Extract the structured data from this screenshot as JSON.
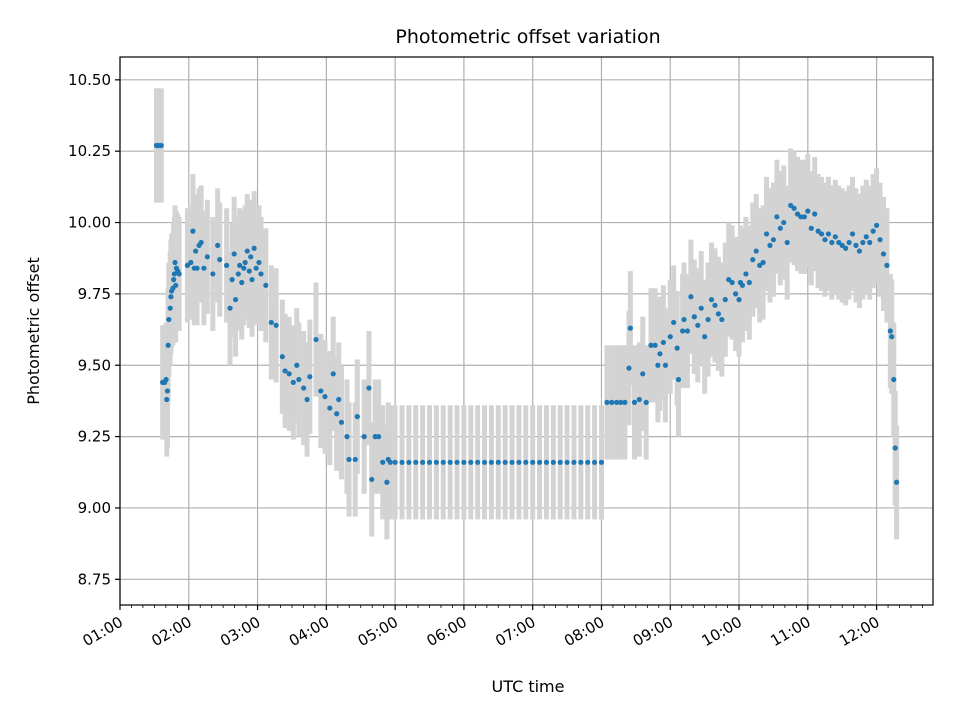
{
  "chart_data": {
    "type": "scatter",
    "title": "Photometric offset variation",
    "xlabel": "UTC time",
    "ylabel": "Photometric offset",
    "x_unit": "hours UTC",
    "xlim": [
      1.0,
      12.82
    ],
    "ylim": [
      8.66,
      10.58
    ],
    "x_ticks": [
      {
        "value": 1,
        "label": "01:00"
      },
      {
        "value": 2,
        "label": "02:00"
      },
      {
        "value": 3,
        "label": "03:00"
      },
      {
        "value": 4,
        "label": "04:00"
      },
      {
        "value": 5,
        "label": "05:00"
      },
      {
        "value": 6,
        "label": "06:00"
      },
      {
        "value": 7,
        "label": "07:00"
      },
      {
        "value": 8,
        "label": "08:00"
      },
      {
        "value": 9,
        "label": "09:00"
      },
      {
        "value": 10,
        "label": "10:00"
      },
      {
        "value": 11,
        "label": "11:00"
      },
      {
        "value": 12,
        "label": "12:00"
      }
    ],
    "y_ticks": [
      {
        "value": 8.75,
        "label": "8.75"
      },
      {
        "value": 9.0,
        "label": "9.00"
      },
      {
        "value": 9.25,
        "label": "9.25"
      },
      {
        "value": 9.5,
        "label": "9.50"
      },
      {
        "value": 9.75,
        "label": "9.75"
      },
      {
        "value": 10.0,
        "label": "10.00"
      },
      {
        "value": 10.25,
        "label": "10.25"
      },
      {
        "value": 10.5,
        "label": "10.50"
      }
    ],
    "grid": true,
    "x_tick_rotation": "30 degrees",
    "colors": {
      "points": "#1f77b4",
      "error_bars": "#d3d3d3",
      "grid": "#b0b0b0"
    },
    "error_half_width": 0.2,
    "points": [
      {
        "x": 1.53,
        "y": 10.27
      },
      {
        "x": 1.56,
        "y": 10.27
      },
      {
        "x": 1.6,
        "y": 10.27
      },
      {
        "x": 1.62,
        "y": 9.44
      },
      {
        "x": 1.65,
        "y": 9.44
      },
      {
        "x": 1.67,
        "y": 9.45
      },
      {
        "x": 1.68,
        "y": 9.38
      },
      {
        "x": 1.69,
        "y": 9.41
      },
      {
        "x": 1.7,
        "y": 9.57
      },
      {
        "x": 1.71,
        "y": 9.66
      },
      {
        "x": 1.73,
        "y": 9.7
      },
      {
        "x": 1.74,
        "y": 9.74
      },
      {
        "x": 1.75,
        "y": 9.76
      },
      {
        "x": 1.77,
        "y": 9.77
      },
      {
        "x": 1.78,
        "y": 9.8
      },
      {
        "x": 1.79,
        "y": 9.82
      },
      {
        "x": 1.8,
        "y": 9.86
      },
      {
        "x": 1.81,
        "y": 9.78
      },
      {
        "x": 1.82,
        "y": 9.84
      },
      {
        "x": 1.84,
        "y": 9.83
      },
      {
        "x": 1.86,
        "y": 9.82
      },
      {
        "x": 1.98,
        "y": 9.85
      },
      {
        "x": 2.03,
        "y": 9.86
      },
      {
        "x": 2.06,
        "y": 9.97
      },
      {
        "x": 2.08,
        "y": 9.84
      },
      {
        "x": 2.1,
        "y": 9.9
      },
      {
        "x": 2.12,
        "y": 9.84
      },
      {
        "x": 2.15,
        "y": 9.92
      },
      {
        "x": 2.18,
        "y": 9.93
      },
      {
        "x": 2.22,
        "y": 9.84
      },
      {
        "x": 2.27,
        "y": 9.88
      },
      {
        "x": 2.35,
        "y": 9.82
      },
      {
        "x": 2.42,
        "y": 9.92
      },
      {
        "x": 2.45,
        "y": 9.87
      },
      {
        "x": 2.55,
        "y": 9.85
      },
      {
        "x": 2.6,
        "y": 9.7
      },
      {
        "x": 2.63,
        "y": 9.8
      },
      {
        "x": 2.66,
        "y": 9.89
      },
      {
        "x": 2.68,
        "y": 9.73
      },
      {
        "x": 2.72,
        "y": 9.82
      },
      {
        "x": 2.74,
        "y": 9.85
      },
      {
        "x": 2.77,
        "y": 9.79
      },
      {
        "x": 2.8,
        "y": 9.84
      },
      {
        "x": 2.82,
        "y": 9.86
      },
      {
        "x": 2.85,
        "y": 9.9
      },
      {
        "x": 2.88,
        "y": 9.83
      },
      {
        "x": 2.9,
        "y": 9.88
      },
      {
        "x": 2.92,
        "y": 9.8
      },
      {
        "x": 2.95,
        "y": 9.91
      },
      {
        "x": 2.98,
        "y": 9.84
      },
      {
        "x": 3.02,
        "y": 9.86
      },
      {
        "x": 3.05,
        "y": 9.82
      },
      {
        "x": 3.12,
        "y": 9.78
      },
      {
        "x": 3.2,
        "y": 9.65
      },
      {
        "x": 3.27,
        "y": 9.64
      },
      {
        "x": 3.36,
        "y": 9.53
      },
      {
        "x": 3.4,
        "y": 9.48
      },
      {
        "x": 3.46,
        "y": 9.47
      },
      {
        "x": 3.52,
        "y": 9.44
      },
      {
        "x": 3.57,
        "y": 9.5
      },
      {
        "x": 3.6,
        "y": 9.45
      },
      {
        "x": 3.67,
        "y": 9.42
      },
      {
        "x": 3.72,
        "y": 9.38
      },
      {
        "x": 3.76,
        "y": 9.46
      },
      {
        "x": 3.85,
        "y": 9.59
      },
      {
        "x": 3.92,
        "y": 9.41
      },
      {
        "x": 3.98,
        "y": 9.39
      },
      {
        "x": 4.05,
        "y": 9.35
      },
      {
        "x": 4.1,
        "y": 9.47
      },
      {
        "x": 4.15,
        "y": 9.33
      },
      {
        "x": 4.18,
        "y": 9.38
      },
      {
        "x": 4.22,
        "y": 9.3
      },
      {
        "x": 4.3,
        "y": 9.25
      },
      {
        "x": 4.33,
        "y": 9.17
      },
      {
        "x": 4.42,
        "y": 9.17
      },
      {
        "x": 4.45,
        "y": 9.32
      },
      {
        "x": 4.55,
        "y": 9.25
      },
      {
        "x": 4.62,
        "y": 9.42
      },
      {
        "x": 4.66,
        "y": 9.1
      },
      {
        "x": 4.71,
        "y": 9.25
      },
      {
        "x": 4.76,
        "y": 9.25
      },
      {
        "x": 4.82,
        "y": 9.16
      },
      {
        "x": 4.88,
        "y": 9.09
      },
      {
        "x": 4.9,
        "y": 9.17
      },
      {
        "x": 4.93,
        "y": 9.16
      },
      {
        "x": 5.0,
        "y": 9.16
      },
      {
        "x": 5.1,
        "y": 9.16
      },
      {
        "x": 5.2,
        "y": 9.16
      },
      {
        "x": 5.3,
        "y": 9.16
      },
      {
        "x": 5.4,
        "y": 9.16
      },
      {
        "x": 5.5,
        "y": 9.16
      },
      {
        "x": 5.6,
        "y": 9.16
      },
      {
        "x": 5.7,
        "y": 9.16
      },
      {
        "x": 5.8,
        "y": 9.16
      },
      {
        "x": 5.9,
        "y": 9.16
      },
      {
        "x": 6.0,
        "y": 9.16
      },
      {
        "x": 6.1,
        "y": 9.16
      },
      {
        "x": 6.2,
        "y": 9.16
      },
      {
        "x": 6.3,
        "y": 9.16
      },
      {
        "x": 6.4,
        "y": 9.16
      },
      {
        "x": 6.5,
        "y": 9.16
      },
      {
        "x": 6.6,
        "y": 9.16
      },
      {
        "x": 6.7,
        "y": 9.16
      },
      {
        "x": 6.8,
        "y": 9.16
      },
      {
        "x": 6.9,
        "y": 9.16
      },
      {
        "x": 7.0,
        "y": 9.16
      },
      {
        "x": 7.1,
        "y": 9.16
      },
      {
        "x": 7.2,
        "y": 9.16
      },
      {
        "x": 7.3,
        "y": 9.16
      },
      {
        "x": 7.4,
        "y": 9.16
      },
      {
        "x": 7.5,
        "y": 9.16
      },
      {
        "x": 7.6,
        "y": 9.16
      },
      {
        "x": 7.7,
        "y": 9.16
      },
      {
        "x": 7.8,
        "y": 9.16
      },
      {
        "x": 7.9,
        "y": 9.16
      },
      {
        "x": 8.0,
        "y": 9.16
      },
      {
        "x": 8.08,
        "y": 9.37
      },
      {
        "x": 8.15,
        "y": 9.37
      },
      {
        "x": 8.22,
        "y": 9.37
      },
      {
        "x": 8.28,
        "y": 9.37
      },
      {
        "x": 8.34,
        "y": 9.37
      },
      {
        "x": 8.4,
        "y": 9.49
      },
      {
        "x": 8.42,
        "y": 9.63
      },
      {
        "x": 8.48,
        "y": 9.37
      },
      {
        "x": 8.55,
        "y": 9.38
      },
      {
        "x": 8.6,
        "y": 9.47
      },
      {
        "x": 8.65,
        "y": 9.37
      },
      {
        "x": 8.72,
        "y": 9.57
      },
      {
        "x": 8.78,
        "y": 9.57
      },
      {
        "x": 8.82,
        "y": 9.5
      },
      {
        "x": 8.85,
        "y": 9.54
      },
      {
        "x": 8.9,
        "y": 9.58
      },
      {
        "x": 8.93,
        "y": 9.5
      },
      {
        "x": 9.0,
        "y": 9.6
      },
      {
        "x": 9.05,
        "y": 9.65
      },
      {
        "x": 9.1,
        "y": 9.56
      },
      {
        "x": 9.12,
        "y": 9.45
      },
      {
        "x": 9.18,
        "y": 9.62
      },
      {
        "x": 9.2,
        "y": 9.66
      },
      {
        "x": 9.25,
        "y": 9.62
      },
      {
        "x": 9.3,
        "y": 9.74
      },
      {
        "x": 9.35,
        "y": 9.67
      },
      {
        "x": 9.4,
        "y": 9.64
      },
      {
        "x": 9.45,
        "y": 9.7
      },
      {
        "x": 9.5,
        "y": 9.6
      },
      {
        "x": 9.55,
        "y": 9.66
      },
      {
        "x": 9.6,
        "y": 9.73
      },
      {
        "x": 9.65,
        "y": 9.71
      },
      {
        "x": 9.7,
        "y": 9.68
      },
      {
        "x": 9.75,
        "y": 9.66
      },
      {
        "x": 9.8,
        "y": 9.73
      },
      {
        "x": 9.85,
        "y": 9.8
      },
      {
        "x": 9.9,
        "y": 9.79
      },
      {
        "x": 9.95,
        "y": 9.75
      },
      {
        "x": 10.0,
        "y": 9.73
      },
      {
        "x": 10.02,
        "y": 9.79
      },
      {
        "x": 10.05,
        "y": 9.78
      },
      {
        "x": 10.1,
        "y": 9.82
      },
      {
        "x": 10.15,
        "y": 9.79
      },
      {
        "x": 10.2,
        "y": 9.87
      },
      {
        "x": 10.25,
        "y": 9.9
      },
      {
        "x": 10.3,
        "y": 9.85
      },
      {
        "x": 10.35,
        "y": 9.86
      },
      {
        "x": 10.4,
        "y": 9.96
      },
      {
        "x": 10.45,
        "y": 9.92
      },
      {
        "x": 10.5,
        "y": 9.94
      },
      {
        "x": 10.55,
        "y": 10.02
      },
      {
        "x": 10.6,
        "y": 9.98
      },
      {
        "x": 10.65,
        "y": 10.0
      },
      {
        "x": 10.7,
        "y": 9.93
      },
      {
        "x": 10.75,
        "y": 10.06
      },
      {
        "x": 10.8,
        "y": 10.05
      },
      {
        "x": 10.85,
        "y": 10.03
      },
      {
        "x": 10.9,
        "y": 10.02
      },
      {
        "x": 10.95,
        "y": 10.02
      },
      {
        "x": 11.0,
        "y": 10.04
      },
      {
        "x": 11.05,
        "y": 9.98
      },
      {
        "x": 11.1,
        "y": 10.03
      },
      {
        "x": 11.15,
        "y": 9.97
      },
      {
        "x": 11.2,
        "y": 9.96
      },
      {
        "x": 11.25,
        "y": 9.94
      },
      {
        "x": 11.3,
        "y": 9.96
      },
      {
        "x": 11.35,
        "y": 9.93
      },
      {
        "x": 11.4,
        "y": 9.95
      },
      {
        "x": 11.45,
        "y": 9.93
      },
      {
        "x": 11.5,
        "y": 9.92
      },
      {
        "x": 11.55,
        "y": 9.91
      },
      {
        "x": 11.6,
        "y": 9.93
      },
      {
        "x": 11.65,
        "y": 9.96
      },
      {
        "x": 11.7,
        "y": 9.92
      },
      {
        "x": 11.75,
        "y": 9.9
      },
      {
        "x": 11.8,
        "y": 9.93
      },
      {
        "x": 11.85,
        "y": 9.95
      },
      {
        "x": 11.9,
        "y": 9.93
      },
      {
        "x": 11.95,
        "y": 9.97
      },
      {
        "x": 12.0,
        "y": 9.99
      },
      {
        "x": 12.05,
        "y": 9.94
      },
      {
        "x": 12.1,
        "y": 9.89
      },
      {
        "x": 12.15,
        "y": 9.85
      },
      {
        "x": 12.2,
        "y": 9.62
      },
      {
        "x": 12.22,
        "y": 9.6
      },
      {
        "x": 12.25,
        "y": 9.45
      },
      {
        "x": 12.27,
        "y": 9.21
      },
      {
        "x": 12.29,
        "y": 9.09
      }
    ]
  }
}
